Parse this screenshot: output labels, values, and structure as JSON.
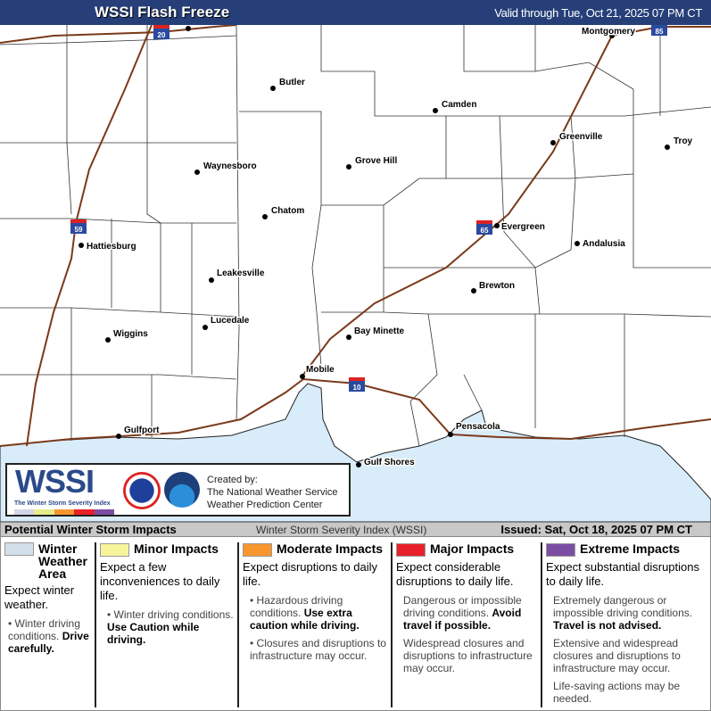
{
  "header": {
    "title": "WSSI Flash Freeze",
    "valid": "Valid through Tue, Oct 21, 2025 07 PM CT"
  },
  "map": {
    "water_color": "#d9ecfa",
    "interstate_color": "#7a3a1a",
    "cities": [
      "Montgomery",
      "Butler",
      "Camden",
      "Greenville",
      "Troy",
      "Waynesboro",
      "Grove Hill",
      "Chatom",
      "Evergreen",
      "Hattiesburg",
      "Andalusia",
      "Leakesville",
      "Brewton",
      "Lucedale",
      "Bay Minette",
      "Wiggins",
      "Mobile",
      "Gulfport",
      "Pensacola",
      "Gulf Shores"
    ],
    "interstates": [
      "20",
      "59",
      "65",
      "10",
      "85"
    ]
  },
  "logo": {
    "wordmark": "WSSI",
    "subtitle": "The Winter Storm Severity Index",
    "created_by": "Created by:",
    "org1": "The National Weather Service",
    "org2": "Weather Prediction Center"
  },
  "legend": {
    "title": "Potential Winter Storm Impacts",
    "index_name": "Winter Storm Severity Index (WSSI)",
    "issued": "Issued: Sat, Oct 18, 2025 07 PM CT",
    "categories": [
      {
        "name": "Winter Weather Area",
        "color": "#d3dfe9",
        "expect": "Expect winter weather.",
        "b1": "Winter driving conditions.",
        "b1bold": "Drive carefully.",
        "b2": "",
        "b3": ""
      },
      {
        "name": "Minor Impacts",
        "color": "#f7f59c",
        "expect": "Expect a few inconveniences to daily life.",
        "b1": "Winter driving conditions.",
        "b1bold": "Use Caution while driving.",
        "b2": "",
        "b3": ""
      },
      {
        "name": "Moderate Impacts",
        "color": "#f7962e",
        "expect": "Expect disruptions to daily life.",
        "b1": "Hazardous driving conditions.",
        "b1bold": "Use extra caution while driving.",
        "b2": "Closures and disruptions to infrastructure may occur.",
        "b3": ""
      },
      {
        "name": "Major Impacts",
        "color": "#e8202a",
        "expect": "Expect considerable disruptions to daily life.",
        "b1": "Dangerous or impossible driving conditions.",
        "b1bold": "Avoid travel if possible.",
        "b2": "Widespread closures and disruptions to infrastructure may occur.",
        "b3": ""
      },
      {
        "name": "Extreme Impacts",
        "color": "#7b4ea3",
        "expect": "Expect substantial disruptions to daily life.",
        "b1": "Extremely dangerous or impossible driving conditions.",
        "b1bold": "Travel is not advised.",
        "b2": "Extensive and widespread closures and disruptions to infrastructure may occur.",
        "b3": "Life-saving actions may be needed."
      }
    ]
  }
}
